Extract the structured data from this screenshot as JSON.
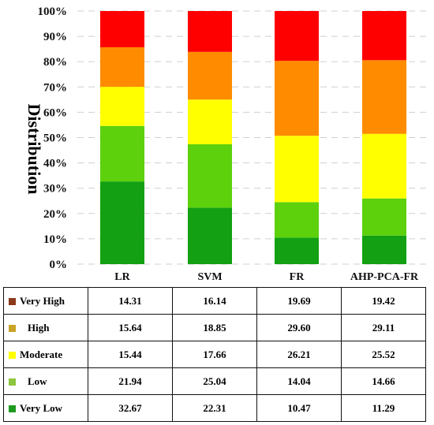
{
  "chart_data": {
    "type": "bar",
    "stacked": true,
    "ylabel": "Distribution",
    "ylim": [
      0,
      100
    ],
    "yticks": [
      "0%",
      "10%",
      "20%",
      "30%",
      "40%",
      "50%",
      "60%",
      "70%",
      "80%",
      "90%",
      "100%"
    ],
    "categories": [
      "LR",
      "SVM",
      "FR",
      "AHP-PCA-FR"
    ],
    "series": [
      {
        "name": "Very Low",
        "color": "#13A012",
        "values": [
          32.67,
          22.31,
          10.47,
          11.29
        ]
      },
      {
        "name": "Low",
        "color": "#5CD10C",
        "values": [
          21.94,
          25.04,
          14.04,
          14.66
        ]
      },
      {
        "name": "Moderate",
        "color": "#FFFF00",
        "values": [
          15.44,
          17.66,
          26.21,
          25.52
        ]
      },
      {
        "name": "High",
        "color": "#FF8C00",
        "values": [
          15.64,
          18.85,
          29.6,
          29.11
        ]
      },
      {
        "name": "Very High",
        "color": "#FF0000",
        "values": [
          14.31,
          16.14,
          19.69,
          19.42
        ]
      }
    ],
    "legend_swatch_colors": {
      "Very High": "#8B3A1A",
      "High": "#C9A227",
      "Moderate": "#FFFF00",
      "Low": "#8DC63F",
      "Very Low": "#1E9A1E"
    },
    "legend": "table-below",
    "grid": "horizontal-dashed"
  },
  "table": {
    "rows": [
      {
        "label": "Very High",
        "values": [
          "14.31",
          "16.14",
          "19.69",
          "19.42"
        ]
      },
      {
        "label": "High",
        "values": [
          "15.64",
          "18.85",
          "29.60",
          "29.11"
        ]
      },
      {
        "label": "Moderate",
        "values": [
          "15.44",
          "17.66",
          "26.21",
          "25.52"
        ]
      },
      {
        "label": "Low",
        "values": [
          "21.94",
          "25.04",
          "14.04",
          "14.66"
        ]
      },
      {
        "label": "Very Low",
        "values": [
          "32.67",
          "22.31",
          "10.47",
          "11.29"
        ]
      }
    ]
  }
}
